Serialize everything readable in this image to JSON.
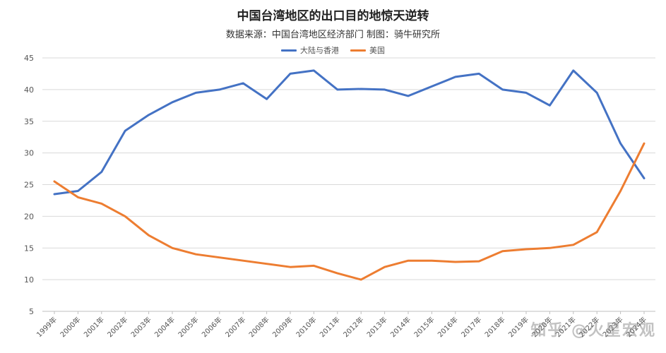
{
  "chart_data": {
    "type": "line",
    "title": "中国台湾地区的出口目的地惊天逆转",
    "subtitle": "数据来源：中国台湾地区经济部门   制图：骑牛研究所",
    "categories": [
      "1999年",
      "2000年",
      "2001年",
      "2002年",
      "2003年",
      "2004年",
      "2005年",
      "2006年",
      "2007年",
      "2008年",
      "2009年",
      "2010年",
      "2011年",
      "2012年",
      "2013年",
      "2014年",
      "2015年",
      "2016年",
      "2017年",
      "2018年",
      "2019年",
      "2020年",
      "2021年",
      "2022年",
      "2023年",
      "2024年"
    ],
    "series": [
      {
        "name": "大陆与香港",
        "color": "#4472c4",
        "values": [
          23.5,
          24.0,
          27.0,
          33.5,
          36.0,
          38.0,
          39.5,
          40.0,
          41.0,
          38.5,
          42.5,
          43.0,
          40.0,
          40.1,
          40.0,
          39.0,
          40.5,
          42.0,
          42.5,
          40.0,
          39.5,
          37.5,
          43.0,
          39.5,
          31.5,
          26.0
        ]
      },
      {
        "name": "美国",
        "color": "#ed7d31",
        "values": [
          25.5,
          23.0,
          22.0,
          20.0,
          17.0,
          15.0,
          14.0,
          13.5,
          13.0,
          12.5,
          12.0,
          12.2,
          11.0,
          10.0,
          12.0,
          13.0,
          13.0,
          12.8,
          12.9,
          14.5,
          14.8,
          15.0,
          15.5,
          17.5,
          24.0,
          31.5
        ]
      }
    ],
    "yticks": [
      5,
      10,
      15,
      20,
      25,
      30,
      35,
      40,
      45
    ],
    "ylim": [
      5,
      45
    ],
    "grid": true,
    "legend_position": "top"
  },
  "watermark": "知乎 @火星宏观"
}
